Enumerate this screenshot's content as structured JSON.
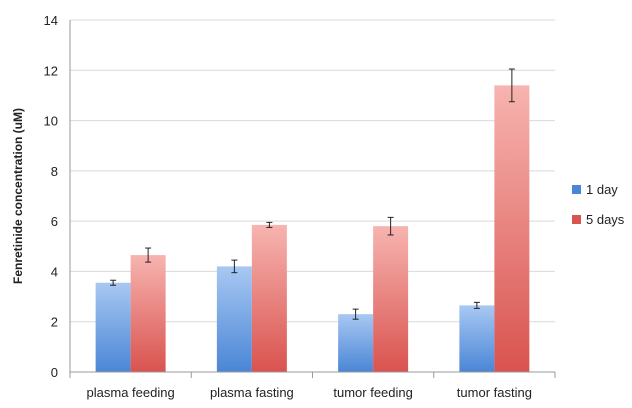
{
  "chart_data": {
    "type": "bar",
    "categories": [
      "plasma feeding",
      "plasma fasting",
      "tumor feeding",
      "tumor fasting"
    ],
    "series": [
      {
        "name": "1 day",
        "values": [
          3.55,
          4.2,
          2.3,
          2.65
        ],
        "errors": [
          0.1,
          0.25,
          0.2,
          0.12
        ]
      },
      {
        "name": "5 days",
        "values": [
          4.65,
          5.85,
          5.8,
          11.4
        ],
        "errors": [
          0.28,
          0.1,
          0.35,
          0.65
        ]
      }
    ],
    "title": "",
    "xlabel": "",
    "ylabel": "Fenretinide concentration (uM)",
    "ylim": [
      0,
      14
    ],
    "yticks": [
      0,
      2,
      4,
      6,
      8,
      10,
      12,
      14
    ],
    "grid": true,
    "legend_position": "right",
    "colors": {
      "series_1_top": "#a8c8f2",
      "series_1_bottom": "#4a86d6",
      "series_2_top": "#f7b4b0",
      "series_2_bottom": "#d9534f",
      "grid": "#d9d9d9",
      "axis": "#999999"
    }
  }
}
